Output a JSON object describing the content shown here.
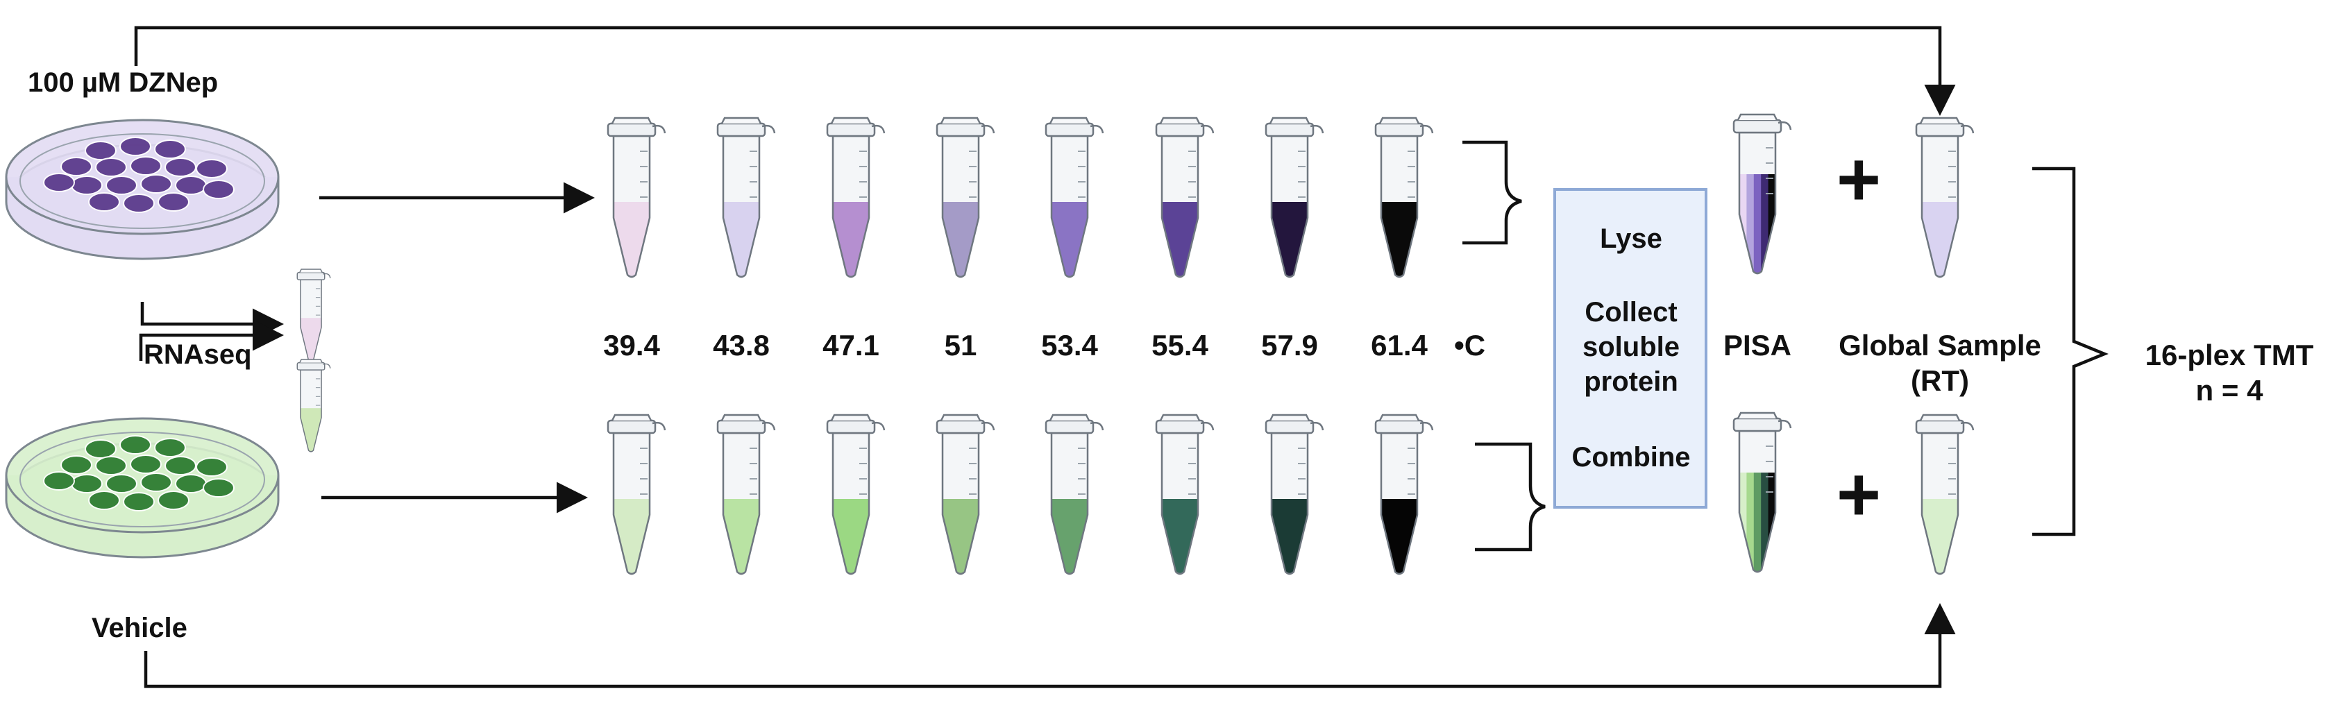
{
  "labels": {
    "treatment": "100 µM DZNep",
    "rnaseq": "RNAseq",
    "vehicle": "Vehicle",
    "lyse": "Lyse",
    "collect_1": "Collect",
    "collect_2": "soluble",
    "collect_3": "protein",
    "combine": "Combine",
    "pisa": "PISA",
    "global_1": "Global Sample",
    "global_2": "(RT)",
    "tmt_1": "16-plex TMT",
    "tmt_2": "n = 4",
    "plus": "+",
    "unit": "•C"
  },
  "temperatures": [
    "39.4",
    "43.8",
    "47.1",
    "51",
    "53.4",
    "55.4",
    "57.9",
    "61.4"
  ],
  "colors": {
    "treatment_tubes": [
      "#eddaec",
      "#d8d2ef",
      "#b58fd0",
      "#a49bc7",
      "#8a74c4",
      "#5b4396",
      "#23163d",
      "#0a0a0a"
    ],
    "vehicle_tubes": [
      "#d5ebc6",
      "#b9e3a3",
      "#9bd883",
      "#97c584",
      "#67a26d",
      "#33695a",
      "#1b3b35",
      "#050505"
    ],
    "treatment_dish": "#e2dcf3",
    "treatment_cells": "#5c3b8c",
    "vehicle_dish": "#d7efcc",
    "vehicle_cells": "#2e7d32",
    "process_box": "#e9f0fb",
    "process_border": "#8ea9d6",
    "pisa_treatment_stripes": [
      "#e9d7f3",
      "#b3a4de",
      "#7c63c0",
      "#3e2a72",
      "#0b0b0b"
    ],
    "pisa_vehicle_stripes": [
      "#d7efc9",
      "#a6d98e",
      "#5e9b63",
      "#284e42",
      "#0b0b0b"
    ],
    "global_treatment": "#d9d3f1",
    "global_vehicle": "#d8efcd",
    "rnaseq_treatment": "#eddaec",
    "rnaseq_vehicle": "#cfe8b8"
  }
}
